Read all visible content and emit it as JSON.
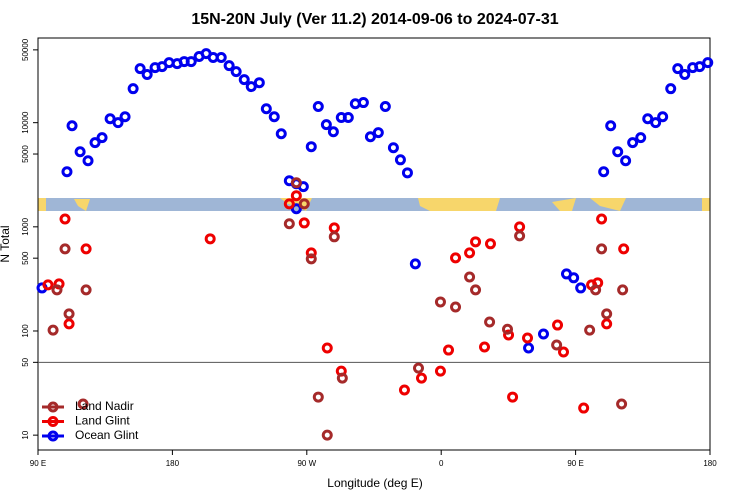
{
  "chart_data": {
    "type": "scatter",
    "title": "15N-20N July (Ver 11.2)   2014-09-06 to 2024-07-31",
    "x_label": "Longitude (deg E)",
    "y_label": "N Total",
    "log_y": true,
    "hline": 50,
    "legend": "lower left",
    "xlim": [
      90,
      540
    ],
    "ylim": [
      7.2,
      65000
    ],
    "xticks": [
      {
        "value": 90,
        "label": "90 E"
      },
      180,
      {
        "value": 270,
        "label": "90 W"
      },
      {
        "value": 360,
        "label": "0"
      },
      {
        "value": 450,
        "label": "90 E"
      },
      {
        "value": 540,
        "label": "180"
      }
    ],
    "yticks": [
      10,
      50,
      100,
      500,
      1000,
      5000,
      10000,
      50000
    ],
    "series": [
      {
        "name": "Land Nadir",
        "color": "#a52a2a",
        "x": [
          100.1,
          102.7,
          108.1,
          110.8,
          122.2,
          120.2,
          258.3,
          263.0,
          268.3,
          273.0,
          277.7,
          283.7,
          288.4,
          293.8,
          344.8,
          359.5,
          369.6,
          379.0,
          383.0,
          392.4,
          404.4,
          412.5,
          437.3,
          459.4,
          463.4,
          467.4,
          470.8,
          481.5,
          480.8
        ],
        "values": [
          102,
          248,
          614,
          146,
          248,
          19.9,
          1070,
          2650,
          1660,
          492,
          23.2,
          10,
          802,
          35.3,
          44.0,
          190,
          170,
          330,
          248,
          122,
          104,
          818,
          73.3,
          102,
          248,
          614,
          146,
          248,
          19.9
        ]
      },
      {
        "name": "Land Glint",
        "color": "#ee0000",
        "x": [
          96.7,
          104.1,
          108.1,
          110.8,
          122.2,
          205.3,
          263.0,
          258.3,
          268.3,
          273.0,
          283.7,
          288.4,
          293.1,
          335.4,
          346.8,
          359.5,
          364.9,
          369.6,
          379.0,
          383.0,
          389.0,
          393.0,
          405.1,
          407.8,
          412.5,
          417.8,
          437.9,
          441.9,
          455.4,
          460.7,
          464.8,
          467.4,
          470.8,
          482.2
        ],
        "values": [
          277,
          283,
          1190,
          117,
          614,
          767,
          1990,
          1660,
          1090,
          562,
          68.7,
          977,
          41.2,
          27.1,
          35.3,
          41.2,
          65.6,
          503,
          562,
          718,
          70.2,
          687,
          91.6,
          23.2,
          1000,
          85.7,
          114,
          62.8,
          18.2,
          277,
          290,
          1190,
          117,
          614
        ]
      },
      {
        "name": "Ocean Glint",
        "color": "#0000ee",
        "x": [
          92.7,
          109.4,
          112.8,
          118.2,
          123.5,
          128.2,
          132.9,
          138.3,
          143.6,
          148.3,
          153.7,
          158.4,
          163.1,
          168.4,
          173.1,
          177.8,
          183.2,
          187.9,
          192.6,
          197.9,
          202.6,
          207.3,
          212.7,
          218.0,
          222.7,
          228.1,
          232.8,
          238.2,
          242.9,
          248.2,
          252.9,
          258.3,
          263.0,
          267.7,
          263.0,
          273.0,
          277.7,
          283.1,
          287.8,
          293.1,
          297.8,
          302.5,
          307.9,
          312.6,
          317.9,
          322.6,
          328.0,
          332.7,
          337.4,
          342.7,
          418.5,
          428.5,
          443.9,
          448.7,
          453.4,
          468.8,
          473.5,
          478.2,
          483.5,
          488.2,
          493.6,
          498.3,
          503.6,
          508.3,
          513.7,
          518.4,
          523.1,
          528.4,
          533.1,
          538.5
        ],
        "values": [
          259,
          3380,
          9350,
          5260,
          4310,
          6430,
          7180,
          10900,
          10000,
          11400,
          21200,
          33000,
          29000,
          33800,
          34500,
          37700,
          36900,
          38600,
          38600,
          43200,
          46000,
          42200,
          42200,
          35300,
          30900,
          25900,
          22200,
          24200,
          13600,
          11400,
          7830,
          2770,
          2590,
          2430,
          1490,
          5880,
          14300,
          9570,
          8180,
          11200,
          11200,
          15200,
          15600,
          7330,
          8020,
          14300,
          5750,
          4400,
          3300,
          441,
          68.7,
          93.5,
          353,
          324,
          259,
          3380,
          9350,
          5260,
          4310,
          6430,
          7180,
          10900,
          10000,
          11400,
          21200,
          33000,
          29000,
          33800,
          34500,
          37700
        ]
      }
    ]
  }
}
